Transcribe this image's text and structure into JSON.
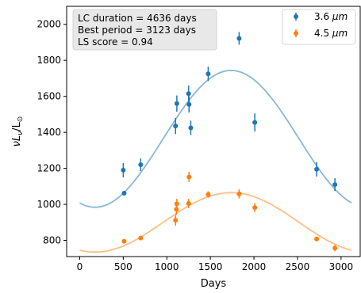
{
  "chart_data": {
    "type": "scatter",
    "xlabel": "Days",
    "ylabel_parts": [
      "νL",
      "ν",
      "/L",
      "⊙"
    ],
    "xlim": [
      -150,
      3220
    ],
    "ylim": [
      710,
      2100
    ],
    "xticks": [
      0,
      500,
      1000,
      1500,
      2000,
      2500,
      3000
    ],
    "yticks": [
      800,
      1000,
      1200,
      1400,
      1600,
      1800,
      2000
    ],
    "grid": false,
    "legend_position": "top-right",
    "annotation": [
      "LC duration = 4636 days",
      "Best period = 3123 days",
      "LS score = 0.94"
    ],
    "series": [
      {
        "name": "3.6",
        "name_unit": "μm",
        "color": "#1f77b4",
        "fit_color": "#88b7d9",
        "points": [
          {
            "x": 500,
            "y": 1190,
            "err": 40
          },
          {
            "x": 510,
            "y": 1062,
            "err": 8
          },
          {
            "x": 700,
            "y": 1220,
            "err": 35
          },
          {
            "x": 1100,
            "y": 1435,
            "err": 45
          },
          {
            "x": 1115,
            "y": 1560,
            "err": 45
          },
          {
            "x": 1250,
            "y": 1615,
            "err": 45
          },
          {
            "x": 1255,
            "y": 1555,
            "err": 45
          },
          {
            "x": 1275,
            "y": 1425,
            "err": 40
          },
          {
            "x": 1475,
            "y": 1725,
            "err": 40
          },
          {
            "x": 1830,
            "y": 1922,
            "err": 35
          },
          {
            "x": 2010,
            "y": 1455,
            "err": 50
          },
          {
            "x": 2720,
            "y": 1195,
            "err": 40
          },
          {
            "x": 2930,
            "y": 1110,
            "err": 35
          }
        ],
        "fit": {
          "mean": 1364,
          "amplitude": 380,
          "period": 3123,
          "peak_day": 1738
        }
      },
      {
        "name": "4.5",
        "name_unit": "μm",
        "color": "#ff7f0e",
        "fit_color": "#ffbf86",
        "points": [
          {
            "x": 510,
            "y": 795,
            "err": 8
          },
          {
            "x": 700,
            "y": 813,
            "err": 12
          },
          {
            "x": 1100,
            "y": 912,
            "err": 30
          },
          {
            "x": 1110,
            "y": 972,
            "err": 30
          },
          {
            "x": 1115,
            "y": 1003,
            "err": 28
          },
          {
            "x": 1250,
            "y": 1005,
            "err": 25
          },
          {
            "x": 1255,
            "y": 1152,
            "err": 28
          },
          {
            "x": 1475,
            "y": 1055,
            "err": 18
          },
          {
            "x": 1830,
            "y": 1058,
            "err": 25
          },
          {
            "x": 2010,
            "y": 982,
            "err": 25
          },
          {
            "x": 2720,
            "y": 808,
            "err": 10
          },
          {
            "x": 2930,
            "y": 757,
            "err": 18
          }
        ],
        "fit": {
          "mean": 900,
          "amplitude": 165,
          "period": 3123,
          "peak_day": 1738
        }
      }
    ]
  }
}
